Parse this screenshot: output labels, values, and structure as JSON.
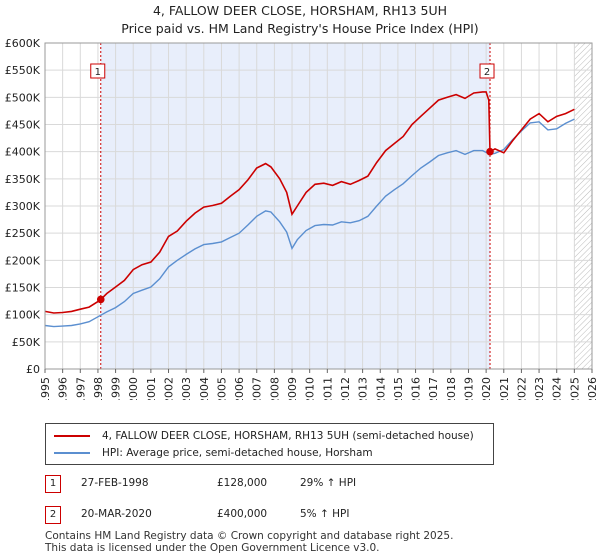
{
  "title_line1": "4, FALLOW DEER CLOSE, HORSHAM, RH13 5UH",
  "title_line2": "Price paid vs. HM Land Registry's House Price Index (HPI)",
  "chart_data": {
    "type": "line",
    "title": "4, FALLOW DEER CLOSE, HORSHAM, RH13 5UH — Price paid vs. HM Land Registry's House Price Index (HPI)",
    "xlim": [
      1995,
      2026
    ],
    "ylim": [
      0,
      600000
    ],
    "x_ticks": [
      "1995",
      "1996",
      "1997",
      "1998",
      "1999",
      "2000",
      "2001",
      "2002",
      "2003",
      "2004",
      "2005",
      "2006",
      "2007",
      "2008",
      "2009",
      "2010",
      "2011",
      "2012",
      "2013",
      "2014",
      "2015",
      "2016",
      "2017",
      "2018",
      "2019",
      "2020",
      "2021",
      "2022",
      "2023",
      "2024",
      "2025",
      "2026"
    ],
    "y_ticks": [
      {
        "value": 0,
        "label": "£0"
      },
      {
        "value": 50000,
        "label": "£50K"
      },
      {
        "value": 100000,
        "label": "£100K"
      },
      {
        "value": 150000,
        "label": "£150K"
      },
      {
        "value": 200000,
        "label": "£200K"
      },
      {
        "value": 250000,
        "label": "£250K"
      },
      {
        "value": 300000,
        "label": "£300K"
      },
      {
        "value": 350000,
        "label": "£350K"
      },
      {
        "value": 400000,
        "label": "£400K"
      },
      {
        "value": 450000,
        "label": "£450K"
      },
      {
        "value": 500000,
        "label": "£500K"
      },
      {
        "value": 550000,
        "label": "£550K"
      },
      {
        "value": 600000,
        "label": "£600K"
      }
    ],
    "ownership_band": [
      1998.16,
      2020.22
    ],
    "hatched_future_from": 2025.0,
    "series": [
      {
        "name": "4, FALLOW DEER CLOSE, HORSHAM, RH13 5UH (semi-detached house)",
        "color": "#cc0000",
        "x": [
          1995.0,
          1995.5,
          1996.0,
          1996.5,
          1997.0,
          1997.5,
          1998.0,
          1998.16,
          1998.5,
          1999.0,
          1999.5,
          2000.0,
          2000.5,
          2001.0,
          2001.5,
          2002.0,
          2002.5,
          2003.0,
          2003.5,
          2004.0,
          2004.5,
          2005.0,
          2005.5,
          2006.0,
          2006.5,
          2007.0,
          2007.5,
          2007.8,
          2008.3,
          2008.7,
          2009.0,
          2009.3,
          2009.8,
          2010.3,
          2010.8,
          2011.3,
          2011.8,
          2012.3,
          2012.8,
          2013.3,
          2013.8,
          2014.3,
          2014.8,
          2015.3,
          2015.8,
          2016.3,
          2016.8,
          2017.3,
          2017.8,
          2018.3,
          2018.8,
          2019.3,
          2019.8,
          2020.0,
          2020.15,
          2020.22,
          2020.5,
          2021.0,
          2021.5,
          2022.0,
          2022.5,
          2023.0,
          2023.5,
          2024.0,
          2024.5,
          2025.0
        ],
        "values": [
          106000,
          103000,
          104000,
          106000,
          110000,
          114000,
          124000,
          128000,
          139000,
          151000,
          163000,
          183000,
          192000,
          197000,
          215000,
          244000,
          254000,
          272000,
          287000,
          298000,
          301000,
          305000,
          318000,
          330000,
          348000,
          370000,
          378000,
          372000,
          350000,
          325000,
          285000,
          300000,
          325000,
          340000,
          342000,
          338000,
          345000,
          340000,
          347000,
          355000,
          380000,
          402000,
          415000,
          428000,
          450000,
          465000,
          480000,
          495000,
          500000,
          505000,
          498000,
          508000,
          510000,
          510000,
          495000,
          400000,
          405000,
          398000,
          420000,
          440000,
          460000,
          470000,
          455000,
          465000,
          470000,
          478000
        ]
      },
      {
        "name": "HPI: Average price, semi-detached house, Horsham",
        "color": "#5b8fd0",
        "x": [
          1995.0,
          1995.5,
          1996.0,
          1996.5,
          1997.0,
          1997.5,
          1998.0,
          1998.5,
          1999.0,
          1999.5,
          2000.0,
          2000.5,
          2001.0,
          2001.5,
          2002.0,
          2002.5,
          2003.0,
          2003.5,
          2004.0,
          2004.5,
          2005.0,
          2005.5,
          2006.0,
          2006.5,
          2007.0,
          2007.5,
          2007.8,
          2008.3,
          2008.7,
          2009.0,
          2009.3,
          2009.8,
          2010.3,
          2010.8,
          2011.3,
          2011.8,
          2012.3,
          2012.8,
          2013.3,
          2013.8,
          2014.3,
          2014.8,
          2015.3,
          2015.8,
          2016.3,
          2016.8,
          2017.3,
          2017.8,
          2018.3,
          2018.8,
          2019.3,
          2019.8,
          2020.22,
          2020.5,
          2021.0,
          2021.5,
          2022.0,
          2022.5,
          2023.0,
          2023.5,
          2024.0,
          2024.5,
          2025.0
        ],
        "values": [
          80000,
          78000,
          79000,
          80000,
          83000,
          87000,
          96000,
          105000,
          113000,
          124000,
          139000,
          145000,
          151000,
          166000,
          188000,
          200000,
          211000,
          221000,
          229000,
          231000,
          234000,
          242000,
          250000,
          265000,
          281000,
          291000,
          289000,
          271000,
          252000,
          222000,
          238000,
          255000,
          264000,
          266000,
          265000,
          271000,
          269000,
          273000,
          281000,
          300000,
          318000,
          330000,
          341000,
          356000,
          370000,
          381000,
          393000,
          398000,
          402000,
          395000,
          402000,
          402000,
          395000,
          397000,
          404000,
          422000,
          438000,
          453000,
          455000,
          440000,
          442000,
          452000,
          460000
        ]
      }
    ],
    "sales": [
      {
        "label": "1",
        "x": 1998.16,
        "y": 128000
      },
      {
        "label": "2",
        "x": 2020.22,
        "y": 400000
      }
    ]
  },
  "legend": {
    "property_label": "4, FALLOW DEER CLOSE, HORSHAM, RH13 5UH (semi-detached house)",
    "hpi_label": "HPI: Average price, semi-detached house, Horsham"
  },
  "sales_table": [
    {
      "num": "1",
      "date": "27-FEB-1998",
      "price": "£128,000",
      "hpi": "29% ↑ HPI"
    },
    {
      "num": "2",
      "date": "20-MAR-2020",
      "price": "£400,000",
      "hpi": "5% ↑ HPI"
    }
  ],
  "footer": {
    "line1": "Contains HM Land Registry data © Crown copyright and database right 2025.",
    "line2": "This data is licensed under the Open Government Licence v3.0."
  },
  "colors": {
    "property": "#cc0000",
    "hpi": "#5b8fd0",
    "band": "#e8eefb",
    "grid": "#d9d9d9"
  }
}
